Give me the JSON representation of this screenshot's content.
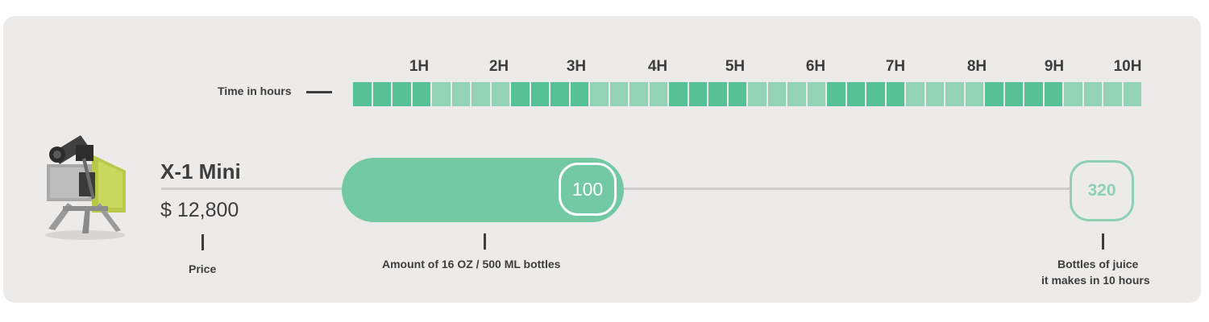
{
  "timeline": {
    "label": "Time in hours",
    "hours": [
      "1H",
      "2H",
      "3H",
      "4H",
      "5H",
      "6H",
      "7H",
      "8H",
      "9H",
      "10H"
    ],
    "segments_per_hour": 4,
    "colors": {
      "dark": "#56c196",
      "light": "#92d2b6"
    }
  },
  "product": {
    "name": "X-1 Mini",
    "price": "$ 12,800",
    "image": "juicer-machine-image"
  },
  "bar": {
    "value": "100",
    "fill_fraction": 0.3125,
    "color": "#73c9a4"
  },
  "total": {
    "value": "320",
    "color": "#8dd0b3"
  },
  "captions": {
    "price": "Price",
    "amount": "Amount of 16 OZ / 500 ML bottles",
    "bottles_line1": "Bottles of juice",
    "bottles_line2": "it makes in 10 hours"
  }
}
